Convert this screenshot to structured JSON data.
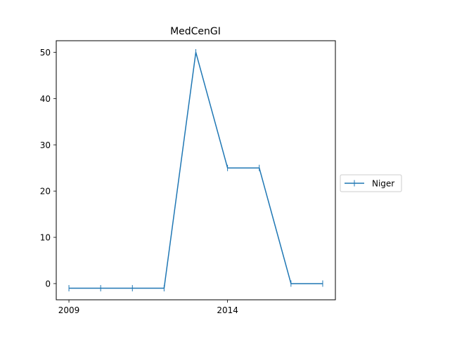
{
  "chart_data": {
    "type": "line",
    "title": "MedCenGI",
    "xlabel": "",
    "ylabel": "",
    "x": [
      2009,
      2010,
      2011,
      2012,
      2013,
      2014,
      2015,
      2016,
      2017
    ],
    "x_ticks": [
      2009,
      2014
    ],
    "y_ticks": [
      0,
      10,
      20,
      30,
      40,
      50
    ],
    "xlim": [
      2008.6,
      2017.4
    ],
    "ylim": [
      -3.5,
      52.5
    ],
    "grid": false,
    "legend_position": "outside-right",
    "marker": "vertical-line",
    "series": [
      {
        "name": "Niger",
        "color": "#1f77b4",
        "values": [
          -1,
          -1,
          -1,
          -1,
          50,
          25,
          25,
          0,
          0
        ]
      }
    ]
  }
}
